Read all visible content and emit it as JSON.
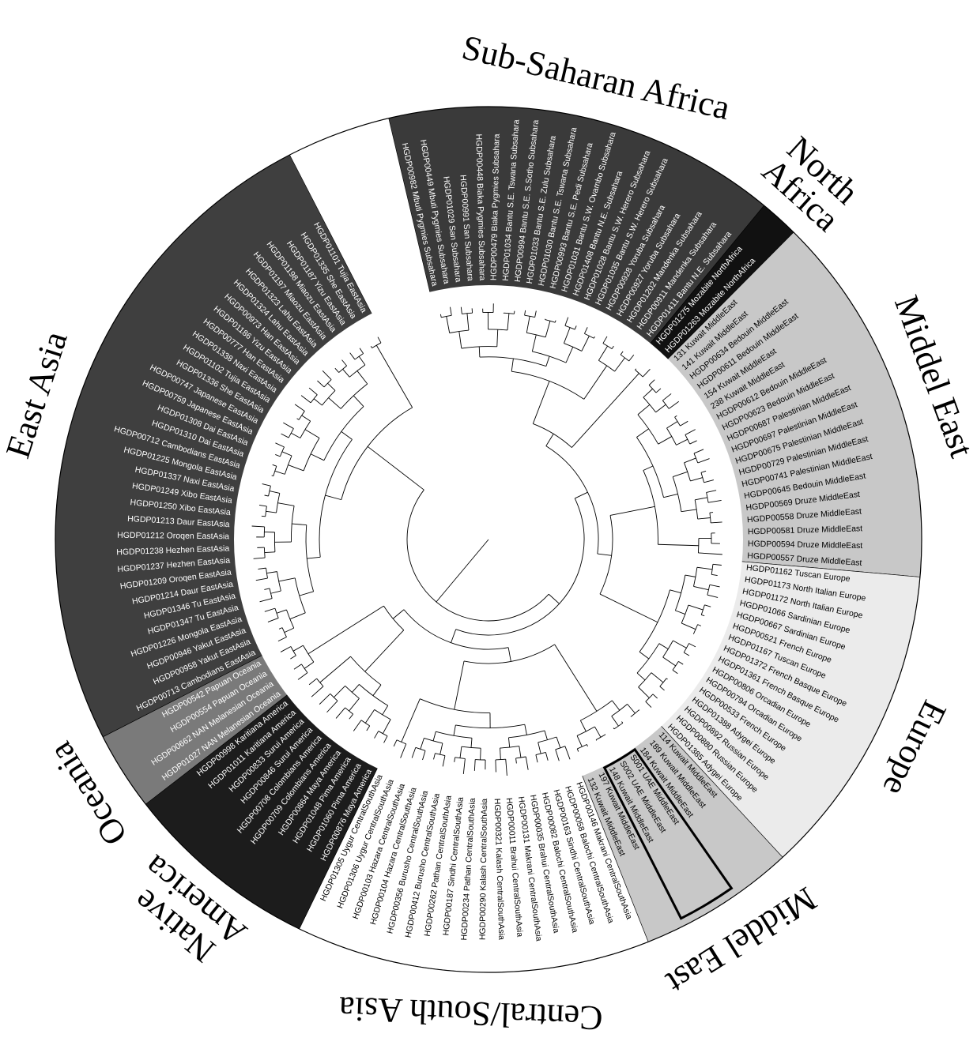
{
  "figure": {
    "type": "circular-phylogenetic-tree",
    "colors": {
      "sub_saharan_africa": "#3a3a3a",
      "north_africa": "#111111",
      "middle_east": "#c8c8c8",
      "europe": "#ebebeb",
      "central_south_asia": "#ffffff",
      "native_america": "#1c1c1c",
      "oceania": "#7a7a7a",
      "east_asia": "#3f3f3f",
      "highlight_outline": "#000000"
    },
    "regions": [
      {
        "name": "Sub-Saharan Africa",
        "label_lines": [
          "Sub-Saharan Africa"
        ],
        "shade": "#3a3a3a",
        "text": "#ffffff",
        "leaves": [
          "HGDP00982 Mbuti Pygmies Subsahara",
          "HGDP00449 Mbuti Pygmies Subsahara",
          "HGDP01029 San Subsahara",
          "HGDP00991 San Subsahara",
          "HGDP00448 Biaka Pygmies Subsahara",
          "HGDP00479 Biaka Pygmies Subsahara",
          "HGDP01034 Bantu S.E. Tswana Subsahara",
          "HGDP00994 Bantu S.E. S.Sotho Subsahara",
          "HGDP01033 Bantu S.E. Zulu Subsahara",
          "HGDP01030 Bantu S.E. Tswana Subsahara",
          "HGDP00993 Bantu S.E. Pedi Subsahara",
          "HGDP01031 Bantu S.W. Ovambo Subsahara",
          "HGDP01408 Bantu N.E. Subsahara",
          "HGDP01028 Bantu S.W. Herero Subsahara",
          "HGDP01035 Bantu S.W. Herero Subsahara",
          "HGDP00928 Yoruba Subsahara",
          "HGDP00927 Yoruba Subsahara",
          "HGDP01202 Mandenka Subsahara",
          "HGDP00911 Mandenka Subsahara",
          "HGDP01411 Bantu N.E. Subsahara"
        ]
      },
      {
        "name": "North Africa",
        "label_lines": [
          "North",
          "Africa"
        ],
        "shade": "#111111",
        "text": "#ffffff",
        "leaves": [
          "HGDP01275 Mozabite NorthAfrica",
          "HGDP01263 Mozabite NorthAfrica"
        ]
      },
      {
        "name": "Middel East",
        "label_lines": [
          "Middel East"
        ],
        "shade": "#c8c8c8",
        "text": "#000000",
        "leaves": [
          "131 Kuwait MiddleEast",
          "141 Kuwait MiddleEast",
          "HGDP00634 Bedouin MiddleEast",
          "HGDP00611 Bedouin MiddleEast",
          "154 Kuwait MiddleEast",
          "238 Kuwait MiddleEast",
          "HGDP00612 Bedouin MiddleEast",
          "HGDP00623 Bedouin MiddleEast",
          "HGDP00687 Palestinian MiddleEast",
          "HGDP00697 Palestinian MiddleEast",
          "HGDP00675 Palestinian MiddleEast",
          "HGDP00729 Palestinian MiddleEast",
          "HGDP00741 Palestinian MiddleEast",
          "HGDP00645 Bedouin MiddleEast",
          "HGDP00569 Druze MiddleEast",
          "HGDP00558 Druze MiddleEast",
          "HGDP00581 Druze MiddleEast",
          "HGDP00594 Druze MiddleEast",
          "HGDP00557 Druze MiddleEast"
        ]
      },
      {
        "name": "Europe",
        "label_lines": [
          "Europe"
        ],
        "shade": "#ebebeb",
        "text": "#000000",
        "leaves": [
          "HGDP01162 Tuscan Europe",
          "HGDP01173 North Italian Europe",
          "HGDP01172 North Italian Europe",
          "HGDP01066 Sardinian Europe",
          "HGDP00667 Sardinian Europe",
          "HGDP00521 French Europe",
          "HGDP01167 Tuscan Europe",
          "HGDP01372 French Basque Europe",
          "HGDP01361 French Basque Europe",
          "HGDP00806 Orcadian Europe",
          "HGDP00794 Orcadian Europe",
          "HGDP00533 French Europe",
          "HGDP01388 Adygei Europe",
          "HGDP00892 Russian Europe",
          "HGDP00880 Russian Europe",
          "HGDP01385 Adygei Europe"
        ]
      },
      {
        "name": "Middel East",
        "label_lines": [
          "Middel East"
        ],
        "shade": "#c8c8c8",
        "text": "#000000",
        "leaves": [
          "114 Kuwait MiddleEast",
          "189 Kuwait MiddleEast",
          "184 Kuwait MiddleEast",
          "S001 UAE MiddleEast",
          "S002 UAE MiddleEast",
          "148 Kuwait MiddleEast",
          "197 Kuwait MiddleEast",
          "132 Kuwait MiddleEast"
        ],
        "highlight": [
          "S001 UAE MiddleEast",
          "S002 UAE MiddleEast",
          "148 Kuwait MiddleEast"
        ]
      },
      {
        "name": "Central/South Asia",
        "label_lines": [
          "Central/South Asia"
        ],
        "shade": "#ffffff",
        "text": "#000000",
        "leaves": [
          "HGDP00146 Makrani CentralSouthAsia",
          "HGDP00058 Balochi CentralSouthAsia",
          "HGDP00163 Sindhi CentralSouthAsia",
          "HGDP00082 Balochi CentralSouthAsia",
          "HGDP00035 Brahui CentralSouthAsia",
          "HGDP00131 Makrani CentralSouthAsia",
          "HGDP00011 Brahui CentralSouthAsia",
          "HGDP00321 Kalash CentralSouthAsia",
          "HGDP00290 Kalash CentralSouthAsia",
          "HGDP00234 Pathan CentralSouthAsia",
          "HGDP00187 Sindhi CentralSouthAsia",
          "HGDP00262 Pathan CentralSouthAsia",
          "HGDP00412 Burusho CentralSouthAsia",
          "HGDP00356 Burusho CentralSouthAsia",
          "HGDP00104 Hazara CentralSouthAsia",
          "HGDP00103 Hazara CentralSouthAsia",
          "HGDP01306 Uygur CentralSouthAsia",
          "HGDP01305 Uygur CentralSouthAsia"
        ]
      },
      {
        "name": "Native America",
        "label_lines": [
          "Native",
          "America"
        ],
        "shade": "#1c1c1c",
        "text": "#ffffff",
        "leaves": [
          "HGDP00876 Maya America",
          "HGDP01060 Pima America",
          "HGDP01048 Pima America",
          "HGDP00864 Maya America",
          "HGDP00709 Colombians America",
          "HGDP00708 Colombians America",
          "HGDP00846 Surui America",
          "HGDP00833 Surui America",
          "HGDP01011 Karitiana America",
          "HGDP00998 Karitiana America"
        ]
      },
      {
        "name": "Oceania",
        "label_lines": [
          "Oceania"
        ],
        "shade": "#7a7a7a",
        "text": "#ffffff",
        "leaves": [
          "HGDP01027 NAN Melanesian Oceania",
          "HGDP00662 NAN Melanesian Oceania",
          "HGDP00554 Papuan Oceania",
          "HGDP00542 Papuan Oceania"
        ]
      },
      {
        "name": "East Asia",
        "label_lines": [
          "East Asia"
        ],
        "shade": "#3f3f3f",
        "text": "#ffffff",
        "leaves": [
          "HGDP00713 Cambodians EastAsia",
          "HGDP00958 Yakut EastAsia",
          "HGDP00946 Yakut EastAsia",
          "HGDP01226 Mongola EastAsia",
          "HGDP01347 Tu EastAsia",
          "HGDP01346 Tu EastAsia",
          "HGDP01214 Daur EastAsia",
          "HGDP01209 Oroqen EastAsia",
          "HGDP01237 Hezhen EastAsia",
          "HGDP01238 Hezhen EastAsia",
          "HGDP01212 Oroqen EastAsia",
          "HGDP01213 Daur EastAsia",
          "HGDP01250 Xibo EastAsia",
          "HGDP01249 Xibo EastAsia",
          "HGDP01337 Naxi EastAsia",
          "HGDP01225 Mongola EastAsia",
          "HGDP00712 Cambodians EastAsia",
          "HGDP01310 Dai EastAsia",
          "HGDP01308 Dai EastAsia",
          "HGDP00759 Japanese EastAsia",
          "HGDP00747 Japanese EastAsia",
          "HGDP01336 She EastAsia",
          "HGDP01102 Tujia EastAsia",
          "HGDP01338 Naxi EastAsia",
          "HGDP00777 Han EastAsia",
          "HGDP01186 Yizu EastAsia",
          "HGDP00973 Han EastAsia",
          "HGDP01324 Lahu EastAsia",
          "HGDP01323 Lahu EastAsia",
          "HGDP01197 Miaozu EastAsia",
          "HGDP01198 Miaozu EastAsia",
          "HGDP01187 Yizu EastAsia",
          "HGDP01335 She EastAsia",
          "HGDP01101 Tujia EastAsia"
        ]
      }
    ]
  }
}
